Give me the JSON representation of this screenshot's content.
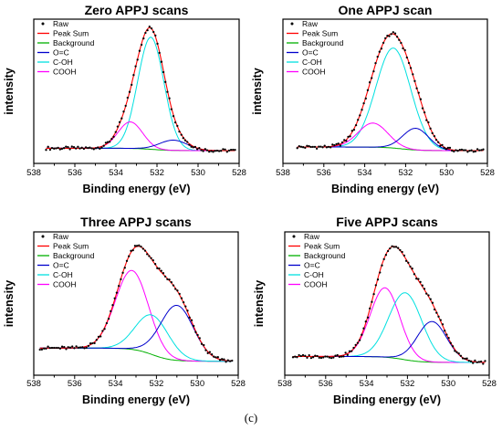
{
  "figure_caption": "(c)",
  "colors": {
    "raw": "#000000",
    "peak_sum": "#ff0000",
    "background": "#00b000",
    "o_c": "#0000cc",
    "c_oh": "#00e0e0",
    "cooh": "#ff00ff",
    "axis": "#000000"
  },
  "chart_data": [
    {
      "type": "line",
      "title": "Zero APPJ scans",
      "xlabel": "Binding energy (eV)",
      "ylabel": "intensity",
      "xlim": [
        538,
        528
      ],
      "x_reversed": true,
      "xticks": [
        "538",
        "536",
        "534",
        "532",
        "530",
        "528"
      ],
      "y_tick_labels": false,
      "legend": [
        "Raw",
        "Peak Sum",
        "Background",
        "O=C",
        "C-OH",
        "COOH"
      ],
      "legend_position": "top-left",
      "y_units": "arbitrary, normalized 0-1",
      "data_range": [
        537.4,
        528.2
      ],
      "background": {
        "left": 0.02,
        "right": 0.0
      },
      "peaks": [
        {
          "name": "C-OH",
          "center": 532.3,
          "fwhm": 1.5,
          "height": 0.93
        },
        {
          "name": "COOH",
          "center": 533.3,
          "fwhm": 1.4,
          "height": 0.22
        },
        {
          "name": "O=C",
          "center": 531.2,
          "fwhm": 1.6,
          "height": 0.085
        }
      ]
    },
    {
      "type": "line",
      "title": "One APPJ scan",
      "xlabel": "Binding energy (eV)",
      "ylabel": "intensity",
      "xlim": [
        538,
        528
      ],
      "x_reversed": true,
      "xticks": [
        "538",
        "536",
        "534",
        "532",
        "530",
        "528"
      ],
      "y_tick_labels": false,
      "legend": [
        "Raw",
        "Peak Sum",
        "Background",
        "O=C",
        "C-OH",
        "COOH"
      ],
      "legend_position": "top-left",
      "y_units": "arbitrary, normalized 0-1",
      "data_range": [
        537.3,
        528.2
      ],
      "background": {
        "left": 0.03,
        "right": 0.0
      },
      "peaks": [
        {
          "name": "C-OH",
          "center": 532.6,
          "fwhm": 2.0,
          "height": 0.83
        },
        {
          "name": "COOH",
          "center": 533.6,
          "fwhm": 1.7,
          "height": 0.2
        },
        {
          "name": "O=C",
          "center": 531.5,
          "fwhm": 1.5,
          "height": 0.18
        }
      ]
    },
    {
      "type": "line",
      "title": "Three APPJ scans",
      "xlabel": "Binding energy (eV)",
      "ylabel": "intensity",
      "xlim": [
        538,
        528
      ],
      "x_reversed": true,
      "xticks": [
        "538",
        "536",
        "534",
        "532",
        "530",
        "528"
      ],
      "y_tick_labels": false,
      "legend": [
        "Raw",
        "Peak Sum",
        "Background",
        "O=C",
        "C-OH",
        "COOH"
      ],
      "legend_position": "top-left",
      "y_units": "arbitrary, normalized 0-1",
      "data_range": [
        537.7,
        528.3
      ],
      "background": {
        "left": 0.12,
        "right": 0.01
      },
      "peaks": [
        {
          "name": "COOH",
          "center": 533.2,
          "fwhm": 1.9,
          "height": 0.66
        },
        {
          "name": "C-OH",
          "center": 532.2,
          "fwhm": 1.9,
          "height": 0.33
        },
        {
          "name": "O=C",
          "center": 531.0,
          "fwhm": 1.9,
          "height": 0.46
        }
      ]
    },
    {
      "type": "line",
      "title": "Five APPJ scans",
      "xlabel": "Binding energy (eV)",
      "ylabel": "intensity",
      "xlim": [
        538,
        528
      ],
      "x_reversed": true,
      "xticks": [
        "538",
        "536",
        "534",
        "532",
        "530",
        "528"
      ],
      "y_tick_labels": false,
      "legend": [
        "Raw",
        "Peak Sum",
        "Background",
        "O=C",
        "C-OH",
        "COOH"
      ],
      "legend_position": "top-left",
      "y_units": "arbitrary, normalized 0-1",
      "data_range": [
        537.6,
        528.2
      ],
      "background": {
        "left": 0.05,
        "right": 0.0
      },
      "peaks": [
        {
          "name": "COOH",
          "center": 533.1,
          "fwhm": 1.7,
          "height": 0.58
        },
        {
          "name": "C-OH",
          "center": 532.1,
          "fwhm": 1.9,
          "height": 0.56
        },
        {
          "name": "O=C",
          "center": 530.8,
          "fwhm": 1.7,
          "height": 0.34
        }
      ]
    }
  ]
}
